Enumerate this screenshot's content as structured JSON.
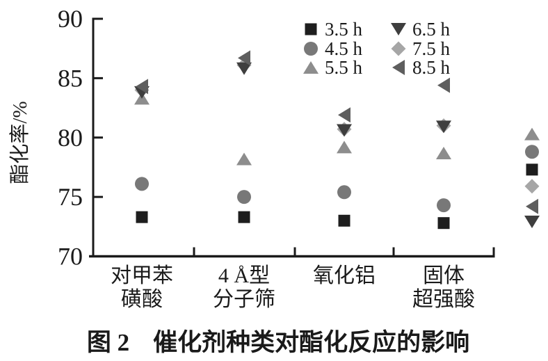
{
  "figure": {
    "caption_prefix": "图 2",
    "caption_text": "催化剂种类对酯化反应的影响"
  },
  "chart_data": {
    "type": "scatter",
    "title": "图 2 催化剂种类对酯化反应的影响",
    "ylabel": "酯化率/%",
    "xlabel": "",
    "ylim": [
      70,
      90
    ],
    "y_ticks": [
      90,
      85,
      80,
      75,
      70
    ],
    "grid": false,
    "legend_position": "top-right, two columns, no frame",
    "categories": [
      "对甲苯磺酸",
      "4 Å型分子筛",
      "氧化铝",
      "固体超强酸"
    ],
    "category_label_lines": [
      [
        "对甲苯",
        "磺酸"
      ],
      [
        "4 Å型",
        "分子筛"
      ],
      [
        "氧化铝"
      ],
      [
        "固体",
        "超强酸"
      ]
    ],
    "series": [
      {
        "name": "3.5 h",
        "marker": "square",
        "color": "#1e1e1e",
        "values": [
          73.3,
          73.3,
          73.0,
          72.8
        ]
      },
      {
        "name": "4.5 h",
        "marker": "circle",
        "color": "#787878",
        "values": [
          76.1,
          75.0,
          75.4,
          74.3
        ]
      },
      {
        "name": "5.5 h",
        "marker": "triangle-up",
        "color": "#8d8d8d",
        "values": [
          83.3,
          78.2,
          79.2,
          78.7
        ]
      },
      {
        "name": "6.5 h",
        "marker": "triangle-down",
        "color": "#3e3e3e",
        "values": [
          83.8,
          85.8,
          80.6,
          80.9
        ]
      },
      {
        "name": "7.5 h",
        "marker": "diamond",
        "color": "#a6a6a6",
        "values": [
          84.0,
          86.1,
          80.7,
          81.0
        ]
      },
      {
        "name": "8.5 h",
        "marker": "triangle-left",
        "color": "#5e5e5e",
        "values": [
          84.3,
          86.7,
          81.9,
          84.4
        ]
      }
    ],
    "edge_markers": [
      {
        "marker": "triangle-up",
        "value": 80.3
      },
      {
        "marker": "circle",
        "value": 78.8
      },
      {
        "marker": "square",
        "value": 77.3
      },
      {
        "marker": "diamond",
        "value": 75.9
      },
      {
        "marker": "triangle-left",
        "value": 74.2
      },
      {
        "marker": "triangle-down",
        "value": 72.9
      }
    ],
    "axis_color": "#1a1a1a"
  }
}
